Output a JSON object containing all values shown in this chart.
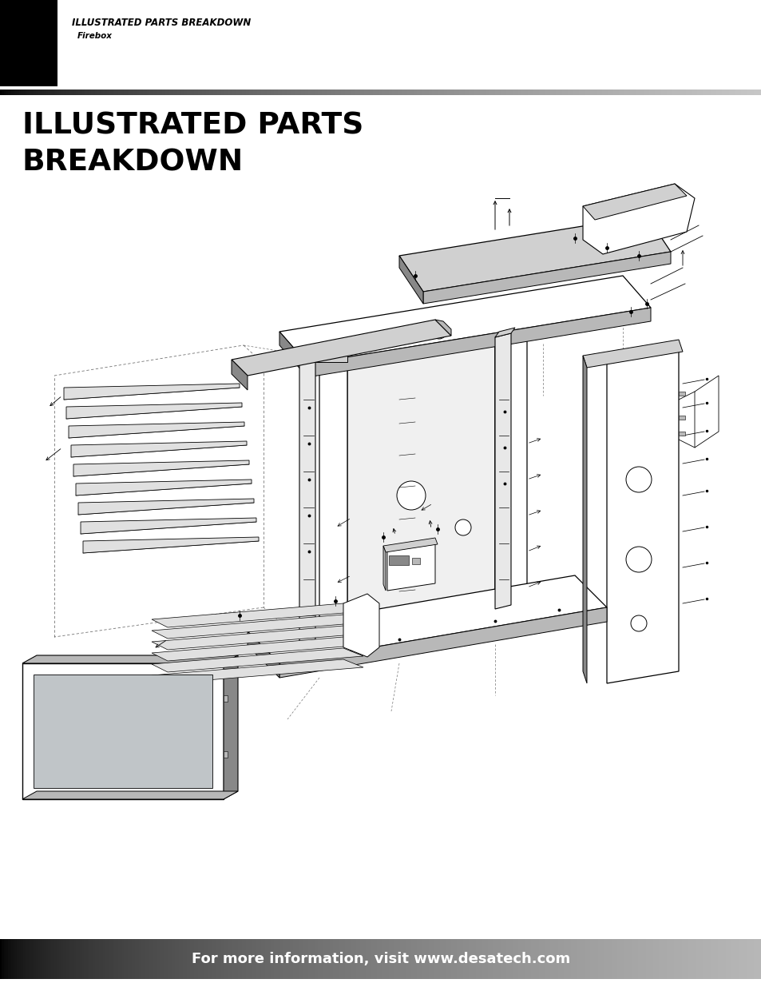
{
  "header_text_line1": "ILLUSTRATED PARTS BREAKDOWN",
  "header_text_line2": "Firebox",
  "title_line1": "ILLUSTRATED PARTS",
  "title_line2": "BREAKDOWN",
  "footer_text": "For more information, visit www.desatech.com",
  "bg_color": "#ffffff",
  "line_color": "#000000",
  "light_gray": "#d0d0d0",
  "mid_gray": "#b8b8b8",
  "dark_gray": "#888888",
  "glass_gray": "#c0c5c8"
}
